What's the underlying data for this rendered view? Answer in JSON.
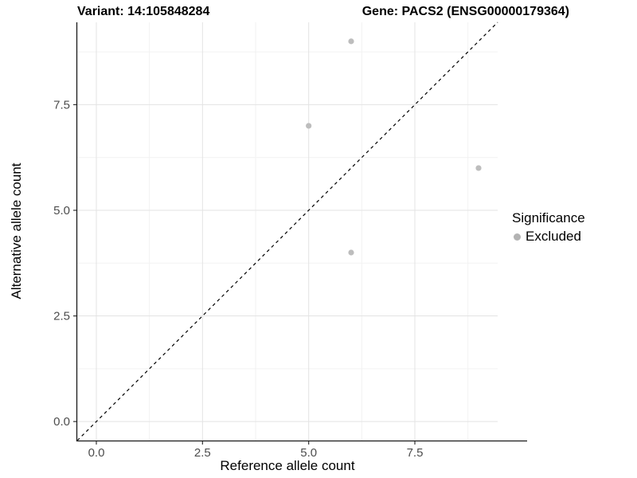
{
  "title": {
    "variant": "Variant: 14:105848284",
    "gene": "Gene: PACS2 (ENSG00000179364)"
  },
  "legend": {
    "title": "Significance",
    "items": [
      {
        "label": "Excluded",
        "color": "#b3b3b3"
      }
    ]
  },
  "colors": {
    "background": "#ffffff",
    "grid_major": "#e3e3e3",
    "grid_minor": "#f2f2f2",
    "axis_line": "#1a1a1a",
    "tick_mark": "#333333",
    "tick_label": "#4d4d4d",
    "point": "#bdbdbd",
    "reference_line": "#000000"
  },
  "chart_data": {
    "type": "scatter",
    "title": "Variant: 14:105848284   Gene: PACS2 (ENSG00000179364)",
    "xlabel": "Reference allele count",
    "ylabel": "Alternative allele count",
    "xlim": [
      -0.45,
      9.45
    ],
    "ylim": [
      -0.45,
      9.45
    ],
    "x_ticks": [
      {
        "value": 0,
        "label": "0.0"
      },
      {
        "value": 2.5,
        "label": "2.5"
      },
      {
        "value": 5,
        "label": "5.0"
      },
      {
        "value": 7.5,
        "label": "7.5"
      }
    ],
    "y_ticks": [
      {
        "value": 0,
        "label": "0.0"
      },
      {
        "value": 2.5,
        "label": "2.5"
      },
      {
        "value": 5,
        "label": "5.0"
      },
      {
        "value": 7.5,
        "label": "7.5"
      }
    ],
    "minor_tick_values": [
      1.25,
      3.75,
      6.25,
      8.75
    ],
    "grid": "major and minor, light gray on white panel",
    "legend_position": "right-center",
    "series": [
      {
        "name": "Excluded",
        "color": "#bdbdbd",
        "marker": "circle",
        "points": [
          {
            "x": 5,
            "y": 7
          },
          {
            "x": 6,
            "y": 9
          },
          {
            "x": 6,
            "y": 4
          },
          {
            "x": 9,
            "y": 6
          }
        ]
      }
    ],
    "reference_line": {
      "equation": "y = x",
      "style": "dashed",
      "color": "#000000"
    }
  }
}
